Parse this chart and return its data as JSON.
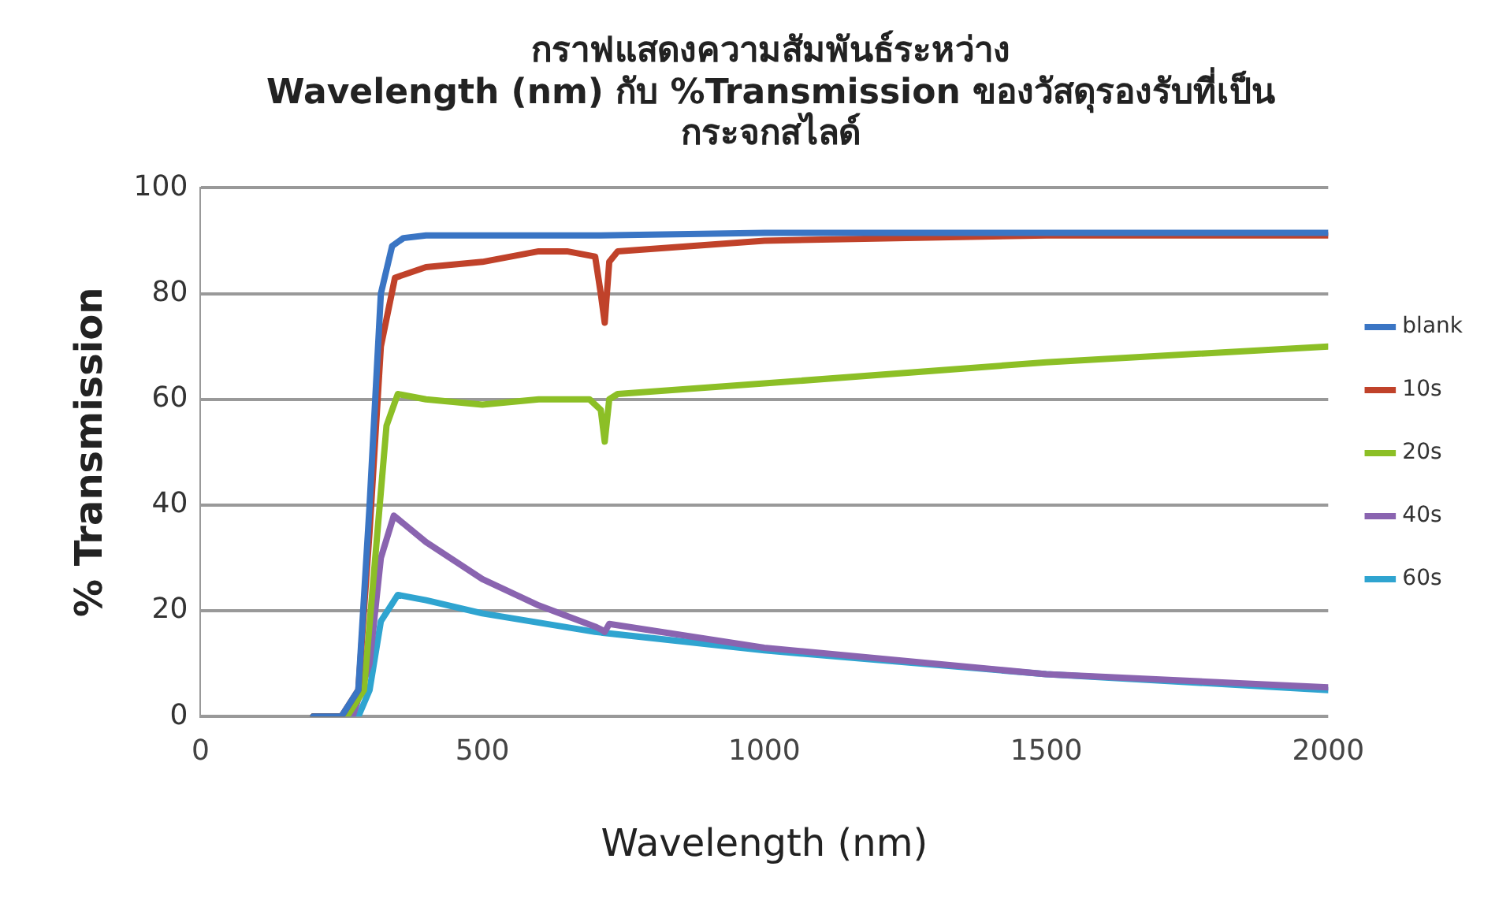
{
  "chart_data": {
    "type": "line",
    "title": "กราฟแสดงความสัมพันธ์ระหว่าง\nWavelength (nm) กับ %Transmission ของวัสดุรองรับที่เป็น\nกระจกสไลด์",
    "xlabel": "Wavelength (nm)",
    "ylabel": "% Transmission",
    "xlim": [
      0,
      2000
    ],
    "xticks": [
      0,
      500,
      1000,
      1500,
      2000
    ],
    "ylim": [
      0,
      100
    ],
    "yticks": [
      0,
      20,
      40,
      60,
      80,
      100
    ],
    "grid": "y",
    "legend": "right",
    "marker": "none",
    "line_style": "solid",
    "series": [
      {
        "name": "blank",
        "color": "#3a75c4",
        "x": [
          200,
          250,
          280,
          300,
          320,
          340,
          360,
          400,
          500,
          700,
          1000,
          1500,
          2000
        ],
        "values": [
          0,
          0,
          5,
          40,
          80,
          89,
          90.5,
          91,
          91,
          91,
          91.5,
          91.5,
          91.5
        ]
      },
      {
        "name": "10s",
        "color": "#c0422a",
        "x": [
          200,
          250,
          280,
          300,
          320,
          345,
          400,
          500,
          600,
          650,
          700,
          710,
          717,
          725,
          740,
          1000,
          1500,
          2000
        ],
        "values": [
          0,
          0,
          5,
          35,
          70,
          83,
          85,
          86,
          88,
          88,
          87,
          80,
          74.5,
          86,
          88,
          90,
          91,
          91
        ]
      },
      {
        "name": "20s",
        "color": "#8cbf26",
        "x": [
          200,
          260,
          290,
          310,
          330,
          350,
          400,
          500,
          600,
          690,
          710,
          717,
          725,
          740,
          1000,
          1500,
          2000
        ],
        "values": [
          0,
          0,
          5,
          30,
          55,
          61,
          60,
          59,
          60,
          60,
          58,
          52,
          60,
          61,
          63,
          67,
          70
        ]
      },
      {
        "name": "40s",
        "color": "#8a64b0",
        "x": [
          200,
          270,
          300,
          320,
          343,
          400,
          500,
          600,
          700,
          710,
          717,
          725,
          1000,
          1500,
          2000
        ],
        "values": [
          0,
          0,
          10,
          30,
          38,
          33,
          26,
          21,
          17,
          16.5,
          16,
          17.5,
          13,
          8,
          5.5
        ]
      },
      {
        "name": "60s",
        "color": "#2fa4d0",
        "x": [
          200,
          280,
          300,
          320,
          350,
          400,
          500,
          700,
          1000,
          1500,
          2000
        ],
        "values": [
          0,
          0,
          5,
          18,
          23,
          22,
          19.5,
          16,
          12.5,
          8,
          5
        ]
      }
    ]
  }
}
